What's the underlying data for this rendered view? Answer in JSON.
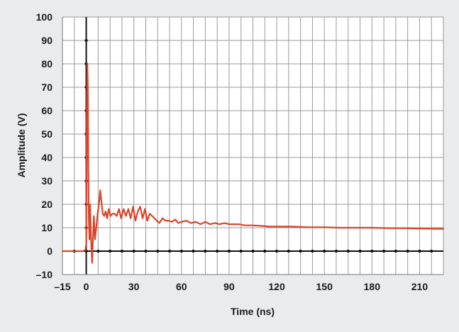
{
  "chart_data": {
    "type": "line",
    "title": "",
    "xlabel": "Time (ns)",
    "ylabel": "Amplitude (V)",
    "xlim": [
      -15,
      225
    ],
    "ylim": [
      -10,
      100
    ],
    "x_ticks": [
      -15,
      0,
      30,
      60,
      90,
      120,
      150,
      180,
      210
    ],
    "x_tick_labels": [
      "–15",
      "0",
      "30",
      "60",
      "90",
      "120",
      "150",
      "180",
      "210"
    ],
    "y_ticks": [
      -10,
      0,
      10,
      20,
      30,
      40,
      50,
      60,
      70,
      80,
      90,
      100
    ],
    "y_tick_labels": [
      "–10",
      "0",
      "10",
      "20",
      "30",
      "40",
      "50",
      "60",
      "70",
      "80",
      "90",
      "100"
    ],
    "x_grid_step": 7.5,
    "y_grid_step": 10,
    "grid": true,
    "background": "#ffffff",
    "page_background": "#e9ebec",
    "grid_color": "#9a9a9a",
    "axis_color": "#111111",
    "series": [
      {
        "color": "#d9442b",
        "x": [
          -15,
          -5,
          -2,
          -0.5,
          0,
          0.3,
          0.7,
          1.0,
          1.3,
          1.6,
          2.0,
          2.4,
          2.8,
          3.2,
          3.7,
          4.2,
          4.8,
          5.5,
          6.3,
          7.2,
          8.0,
          8.8,
          9.6,
          10.4,
          11.3,
          12.2,
          13.2,
          14.2,
          15.3,
          16.5,
          17.8,
          19.2,
          20.6,
          22.0,
          23.5,
          25.0,
          26.5,
          28.0,
          29.5,
          31.0,
          32.5,
          34.0,
          35.5,
          37.0,
          38.5,
          40.0,
          41.5,
          43.0,
          44.5,
          46.0,
          48.0,
          50.0,
          52.0,
          54.0,
          56.0,
          58.0,
          60.0,
          63.0,
          66.0,
          69.0,
          72.0,
          75.0,
          78.0,
          81.0,
          84.0,
          87.0,
          90.0,
          93.0,
          96.0,
          100.0,
          105.0,
          110.0,
          115.0,
          120.0,
          130.0,
          140.0,
          150.0,
          160.0,
          170.0,
          180.0,
          190.0,
          200.0,
          210.0,
          225.0
        ],
        "y": [
          0,
          0,
          0,
          0.5,
          3,
          55,
          80,
          70,
          35,
          15,
          5,
          20,
          10,
          2,
          -5,
          5,
          15,
          5,
          10,
          16,
          20,
          26,
          21,
          16,
          15,
          17,
          14,
          18,
          15,
          16,
          16,
          15,
          18,
          14,
          18,
          15,
          18,
          14,
          19,
          13,
          17,
          19,
          14,
          18,
          13,
          16,
          15,
          14,
          13,
          12,
          14,
          13,
          13,
          12.5,
          13.5,
          12,
          12.5,
          13,
          12,
          12.5,
          11.5,
          12.5,
          11.5,
          12,
          11.5,
          12,
          11.5,
          11.5,
          11.5,
          11,
          11,
          10.8,
          10.5,
          10.5,
          10.5,
          10.2,
          10.2,
          10,
          10,
          10,
          9.8,
          9.8,
          9.6,
          9.5
        ]
      }
    ]
  }
}
